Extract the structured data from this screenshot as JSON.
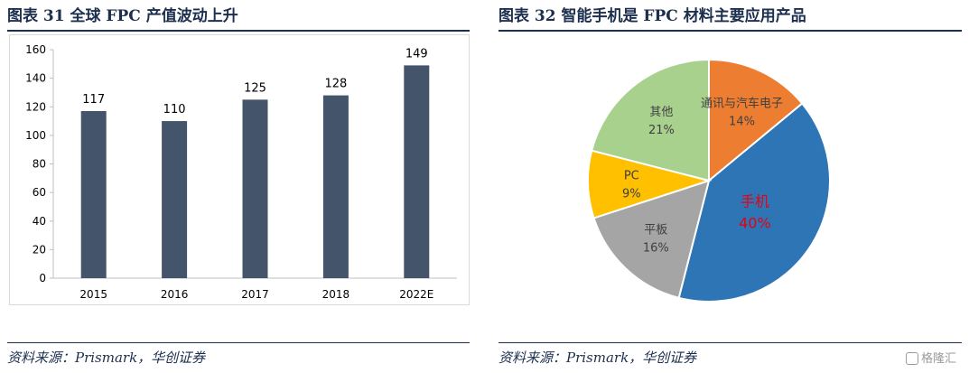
{
  "left": {
    "title": "图表 31    全球 FPC 产值波动上升",
    "source": "资料来源：Prismark，华创证券"
  },
  "right": {
    "title": "图表 32    智能手机是 FPC 材料主要应用产品",
    "source": "资料来源：Prismark，华创证券"
  },
  "watermark": "格隆汇",
  "chart_data": [
    {
      "type": "bar",
      "title": "全球 FPC 产值波动上升",
      "categories": [
        "2015",
        "2016",
        "2017",
        "2018",
        "2022E"
      ],
      "values": [
        117,
        110,
        125,
        128,
        149
      ],
      "ylim": [
        0,
        160
      ],
      "yticks": [
        0,
        20,
        40,
        60,
        80,
        100,
        120,
        140,
        160
      ],
      "xlabel": "",
      "ylabel": "",
      "grid": false,
      "bar_color": "#44546a"
    },
    {
      "type": "pie",
      "title": "智能手机是 FPC 材料主要应用产品",
      "slices": [
        {
          "label": "通讯与汽车电子",
          "value": 14,
          "display": "14%",
          "color": "#ed7d31"
        },
        {
          "label": "手机",
          "value": 40,
          "display": "40%",
          "color": "#2e75b6",
          "emphasis_color": "#e60012"
        },
        {
          "label": "平板",
          "value": 16,
          "display": "16%",
          "color": "#a5a5a5"
        },
        {
          "label": "PC",
          "value": 9,
          "display": "9%",
          "color": "#ffc000"
        },
        {
          "label": "其他",
          "value": 21,
          "display": "21%",
          "color": "#a9d18e"
        }
      ]
    }
  ]
}
